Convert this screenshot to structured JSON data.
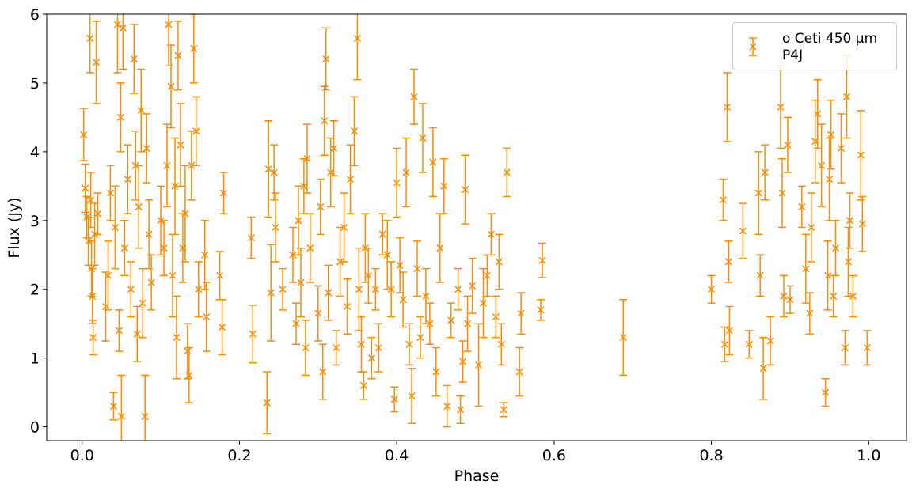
{
  "chart_data": {
    "type": "errorbar-scatter",
    "xlabel": "Phase",
    "ylabel": "Flux (Jy)",
    "xlim": [
      -0.045,
      1.048
    ],
    "ylim": [
      -0.2,
      6
    ],
    "xticks": [
      {
        "value": 0,
        "label": "0.0"
      },
      0.2,
      0.4,
      0.6,
      0.8,
      {
        "value": 1,
        "label": "1.0"
      }
    ],
    "yticks": [
      0,
      1,
      2,
      3,
      4,
      5,
      6
    ],
    "legend": "upper right",
    "x": [
      0.002,
      0.004,
      0.006,
      0.008,
      0.01,
      0.011,
      0.012,
      0.013,
      0.014,
      0.016,
      0.018,
      0.02,
      0.03,
      0.033,
      0.036,
      0.04,
      0.042,
      0.045,
      0.047,
      0.049,
      0.05,
      0.052,
      0.054,
      0.058,
      0.062,
      0.066,
      0.068,
      0.07,
      0.072,
      0.075,
      0.077,
      0.08,
      0.082,
      0.085,
      0.088,
      0.1,
      0.104,
      0.108,
      0.11,
      0.113,
      0.115,
      0.118,
      0.12,
      0.122,
      0.125,
      0.128,
      0.131,
      0.134,
      0.136,
      0.139,
      0.142,
      0.145,
      0.148,
      0.156,
      0.158,
      0.175,
      0.178,
      0.18,
      0.215,
      0.217,
      0.235,
      0.237,
      0.24,
      0.244,
      0.246,
      0.255,
      0.268,
      0.272,
      0.275,
      0.278,
      0.282,
      0.284,
      0.286,
      0.29,
      0.3,
      0.303,
      0.306,
      0.308,
      0.31,
      0.313,
      0.316,
      0.32,
      0.323,
      0.328,
      0.333,
      0.337,
      0.341,
      0.346,
      0.35,
      0.352,
      0.355,
      0.358,
      0.36,
      0.364,
      0.368,
      0.373,
      0.377,
      0.382,
      0.388,
      0.393,
      0.397,
      0.4,
      0.404,
      0.408,
      0.412,
      0.416,
      0.419,
      0.422,
      0.426,
      0.43,
      0.433,
      0.437,
      0.442,
      0.446,
      0.45,
      0.455,
      0.46,
      0.464,
      0.469,
      0.478,
      0.481,
      0.484,
      0.487,
      0.49,
      0.496,
      0.504,
      0.51,
      0.515,
      0.52,
      0.526,
      0.53,
      0.533,
      0.536,
      0.54,
      0.556,
      0.558,
      0.583,
      0.585,
      0.688,
      0.8,
      0.815,
      0.817,
      0.82,
      0.822,
      0.823,
      0.84,
      0.848,
      0.86,
      0.862,
      0.866,
      0.868,
      0.875,
      0.888,
      0.89,
      0.892,
      0.897,
      0.9,
      0.915,
      0.92,
      0.925,
      0.927,
      0.932,
      0.935,
      0.94,
      0.945,
      0.948,
      0.95,
      0.952,
      0.955,
      0.958,
      0.965,
      0.97,
      0.972,
      0.974,
      0.976,
      0.98,
      0.99,
      0.992,
      0.998
    ],
    "series": [
      {
        "name": "o Ceti 450 μm\n P4J",
        "color": "#ff8c00",
        "values": [
          4.25,
          3.47,
          3.05,
          2.7,
          5.65,
          3.3,
          2.3,
          1.9,
          1.3,
          2.8,
          5.3,
          3.1,
          1.75,
          2.2,
          3.4,
          0.3,
          2.9,
          5.85,
          1.4,
          4.5,
          0.15,
          5.8,
          2.6,
          3.6,
          2.0,
          5.35,
          3.8,
          1.35,
          3.2,
          4.6,
          1.8,
          0.15,
          4.05,
          2.8,
          2.1,
          3.0,
          2.6,
          3.8,
          5.85,
          4.95,
          2.2,
          3.5,
          1.3,
          5.4,
          4.1,
          2.6,
          3.1,
          1.1,
          0.75,
          3.8,
          5.5,
          4.3,
          2.0,
          2.5,
          1.6,
          2.2,
          1.45,
          3.4,
          2.75,
          1.35,
          0.35,
          3.75,
          1.95,
          3.7,
          2.9,
          2.0,
          2.5,
          1.5,
          3.0,
          2.1,
          3.5,
          1.15,
          3.9,
          2.6,
          1.65,
          3.2,
          0.8,
          4.45,
          5.35,
          1.95,
          3.7,
          4.05,
          1.15,
          2.4,
          2.9,
          1.75,
          3.6,
          4.3,
          5.65,
          2.0,
          1.2,
          0.6,
          2.6,
          2.2,
          1.0,
          2.0,
          1.15,
          2.8,
          2.5,
          2.0,
          0.4,
          3.55,
          2.35,
          1.85,
          3.7,
          1.2,
          0.45,
          4.8,
          2.3,
          1.3,
          4.2,
          1.9,
          1.5,
          3.85,
          0.8,
          2.6,
          3.5,
          0.3,
          1.55,
          2.0,
          0.25,
          0.95,
          3.45,
          1.5,
          2.05,
          0.9,
          1.8,
          2.2,
          2.8,
          1.6,
          2.4,
          1.2,
          0.25,
          3.7,
          0.8,
          1.65,
          1.7,
          2.42,
          1.3,
          2.0,
          3.3,
          1.2,
          4.65,
          2.4,
          1.4,
          2.85,
          1.2,
          3.4,
          2.2,
          0.85,
          3.7,
          1.25,
          4.65,
          3.4,
          1.9,
          4.1,
          1.85,
          3.2,
          2.3,
          1.65,
          2.9,
          4.15,
          4.55,
          3.8,
          0.5,
          2.2,
          3.6,
          4.25,
          1.9,
          2.6,
          4.05,
          1.15,
          4.8,
          2.4,
          3.0,
          1.9,
          3.95,
          2.95,
          1.15
        ],
        "errors": [
          0.38,
          0.35,
          0.3,
          0.35,
          0.5,
          0.4,
          0.4,
          0.4,
          0.25,
          0.45,
          0.6,
          0.3,
          0.5,
          0.5,
          0.4,
          0.2,
          0.6,
          0.7,
          0.3,
          0.5,
          0.6,
          0.6,
          0.4,
          0.5,
          0.4,
          0.5,
          0.5,
          0.4,
          0.6,
          0.6,
          0.5,
          0.6,
          0.5,
          0.5,
          0.4,
          0.5,
          0.4,
          0.6,
          0.6,
          0.6,
          0.6,
          0.7,
          0.6,
          0.5,
          0.6,
          0.5,
          0.7,
          0.4,
          0.4,
          0.5,
          0.5,
          0.5,
          0.4,
          0.5,
          0.5,
          0.35,
          0.4,
          0.3,
          0.3,
          0.42,
          0.45,
          0.7,
          0.7,
          0.4,
          0.5,
          0.3,
          0.4,
          0.3,
          0.5,
          0.5,
          0.4,
          0.4,
          0.5,
          0.5,
          0.4,
          0.4,
          0.4,
          0.5,
          0.45,
          0.4,
          0.5,
          0.4,
          0.25,
          0.5,
          0.5,
          0.4,
          0.5,
          0.5,
          0.6,
          0.6,
          0.4,
          0.2,
          0.5,
          0.4,
          0.3,
          0.3,
          0.35,
          0.3,
          0.5,
          0.4,
          0.18,
          0.5,
          0.4,
          0.4,
          0.5,
          0.3,
          0.4,
          0.4,
          0.4,
          0.3,
          0.5,
          0.4,
          0.3,
          0.5,
          0.35,
          0.5,
          0.4,
          0.3,
          0.25,
          0.3,
          0.2,
          0.3,
          0.5,
          0.4,
          0.4,
          0.6,
          0.5,
          0.3,
          0.3,
          0.3,
          0.4,
          0.3,
          0.1,
          0.35,
          0.35,
          0.3,
          0.15,
          0.25,
          0.55,
          0.2,
          0.3,
          0.25,
          0.5,
          0.3,
          0.35,
          0.4,
          0.2,
          0.6,
          0.3,
          0.45,
          0.4,
          0.35,
          0.6,
          0.5,
          0.3,
          0.4,
          0.2,
          0.3,
          0.5,
          0.3,
          0.5,
          0.6,
          0.5,
          0.6,
          0.2,
          0.5,
          0.6,
          0.5,
          0.3,
          0.4,
          0.5,
          0.25,
          0.6,
          0.5,
          0.4,
          0.3,
          0.65,
          0.4,
          0.25
        ]
      }
    ]
  }
}
